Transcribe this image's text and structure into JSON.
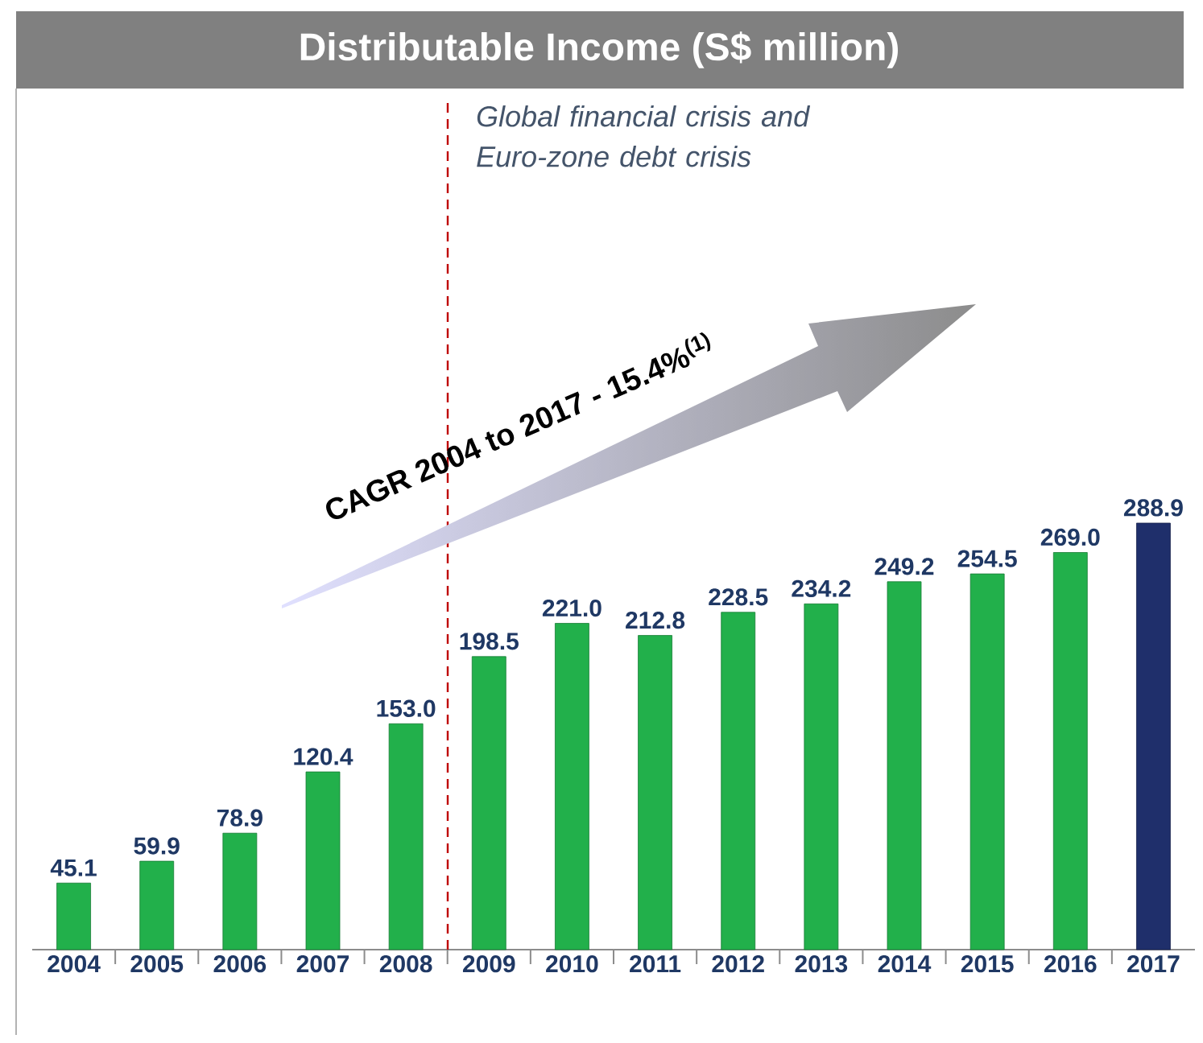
{
  "chart_data": {
    "type": "bar",
    "title": "Distributable Income (S$ million)",
    "categories": [
      "2004",
      "2005",
      "2006",
      "2007",
      "2008",
      "2009",
      "2010",
      "2011",
      "2012",
      "2013",
      "2014",
      "2015",
      "2016",
      "2017"
    ],
    "values": [
      45.1,
      59.9,
      78.9,
      120.4,
      153.0,
      198.5,
      221.0,
      212.8,
      228.5,
      234.2,
      249.2,
      254.5,
      269.0,
      288.9
    ],
    "value_labels": [
      "45.1",
      "59.9",
      "78.9",
      "120.4",
      "153.0",
      "198.5",
      "221.0",
      "212.8",
      "228.5",
      "234.2",
      "249.2",
      "254.5",
      "269.0",
      "288.9"
    ],
    "colors": [
      "#22b04b",
      "#22b04b",
      "#22b04b",
      "#22b04b",
      "#22b04b",
      "#22b04b",
      "#22b04b",
      "#22b04b",
      "#22b04b",
      "#22b04b",
      "#22b04b",
      "#22b04b",
      "#22b04b",
      "#1f2f6b"
    ],
    "annotations": [
      "CAGR 2004 to 2017 - 15.4%$^{(1)}$",
      "Global financial crisis and Euro-zone debt crisis"
    ]
  }
}
